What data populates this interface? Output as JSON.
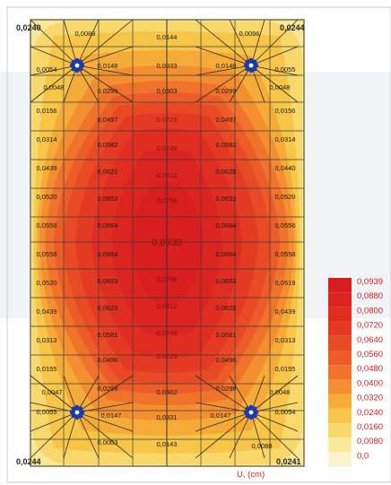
{
  "corner_labels": {
    "top_left": "0,0240",
    "top_right": "0,0244",
    "bottom_left": "0,0244",
    "bottom_right": "0,0241"
  },
  "center_label": "0,0930",
  "unit_label": "U, (cm)",
  "legend": {
    "entries": [
      {
        "label": "0,0939",
        "color": "#d81e1e"
      },
      {
        "label": "0,0880",
        "color": "#dc2520"
      },
      {
        "label": "0,0800",
        "color": "#e02d22"
      },
      {
        "label": "0,0720",
        "color": "#e43a24"
      },
      {
        "label": "0,0640",
        "color": "#e84a26"
      },
      {
        "label": "0,0560",
        "color": "#ec5c28"
      },
      {
        "label": "0,0480",
        "color": "#f0732c"
      },
      {
        "label": "0,0400",
        "color": "#f38f30"
      },
      {
        "label": "0,0320",
        "color": "#f5ab38"
      },
      {
        "label": "0,0240",
        "color": "#f7c548"
      },
      {
        "label": "0,0160",
        "color": "#f8d86a"
      },
      {
        "label": "0,0080",
        "color": "#f9e79a"
      },
      {
        "label": "0,0",
        "color": "#faf3cc"
      }
    ]
  },
  "nodes": [
    {
      "id": "n1",
      "label": "0,0088"
    },
    {
      "id": "n2",
      "label": "0,0144"
    },
    {
      "id": "n3",
      "label": "0,0096"
    },
    {
      "id": "n4",
      "label": "0,0054"
    },
    {
      "id": "n5",
      "label": "0,0148"
    },
    {
      "id": "n6",
      "label": "0,0333"
    },
    {
      "id": "n7",
      "label": "0,0148"
    },
    {
      "id": "n8",
      "label": "0,0055"
    },
    {
      "id": "n9",
      "label": "0,0048"
    },
    {
      "id": "n10",
      "label": "0,0299"
    },
    {
      "id": "n11",
      "label": "0,0503"
    },
    {
      "id": "n12",
      "label": "0,0299"
    },
    {
      "id": "n13",
      "label": "0,0048"
    },
    {
      "id": "n14",
      "label": "0,0156"
    },
    {
      "id": "n15",
      "label": "0,0497"
    },
    {
      "id": "n16",
      "label": "0,0723"
    },
    {
      "id": "n17",
      "label": "0,0497"
    },
    {
      "id": "n18",
      "label": "0,0156"
    },
    {
      "id": "n19",
      "label": "0,0314"
    },
    {
      "id": "n20",
      "label": "0,0582"
    },
    {
      "id": "n21",
      "label": "0,0749"
    },
    {
      "id": "n22",
      "label": "0,0582"
    },
    {
      "id": "n23",
      "label": "0,0314"
    },
    {
      "id": "n24",
      "label": "0,0439"
    },
    {
      "id": "n25",
      "label": "0,0621"
    },
    {
      "id": "n26",
      "label": "0,0812"
    },
    {
      "id": "n27",
      "label": "0,0628"
    },
    {
      "id": "n28",
      "label": "0,0440"
    },
    {
      "id": "n29",
      "label": "0,0520"
    },
    {
      "id": "n30",
      "label": "0,0653"
    },
    {
      "id": "n31",
      "label": "0,0794"
    },
    {
      "id": "n32",
      "label": "0,0653"
    },
    {
      "id": "n33",
      "label": "0,0520"
    },
    {
      "id": "n34",
      "label": "0,0558"
    },
    {
      "id": "n35",
      "label": "0,0664"
    },
    {
      "id": "n36",
      "label": "0,0664"
    },
    {
      "id": "n37",
      "label": "0,0556"
    },
    {
      "id": "n38",
      "label": "0,0558"
    },
    {
      "id": "n39",
      "label": "0,0664"
    },
    {
      "id": "n40",
      "label": "0,0664"
    },
    {
      "id": "n41",
      "label": "0,0558"
    },
    {
      "id": "n42",
      "label": "0,0520"
    },
    {
      "id": "n43",
      "label": "0,0653"
    },
    {
      "id": "n44",
      "label": "0,0794"
    },
    {
      "id": "n45",
      "label": "0,0653"
    },
    {
      "id": "n46",
      "label": "0,0519"
    },
    {
      "id": "n47",
      "label": "0,0439"
    },
    {
      "id": "n48",
      "label": "0,0623"
    },
    {
      "id": "n49",
      "label": "0,0812"
    },
    {
      "id": "n50",
      "label": "0,0628"
    },
    {
      "id": "n51",
      "label": "0,0439"
    },
    {
      "id": "n52",
      "label": "0,0313"
    },
    {
      "id": "n53",
      "label": "0,0581"
    },
    {
      "id": "n54",
      "label": "0,0749"
    },
    {
      "id": "n55",
      "label": "0,0581"
    },
    {
      "id": "n56",
      "label": "0,0313"
    },
    {
      "id": "n57",
      "label": "0,0155"
    },
    {
      "id": "n58",
      "label": "0,0496"
    },
    {
      "id": "n59",
      "label": "0,0723"
    },
    {
      "id": "n60",
      "label": "0,0496"
    },
    {
      "id": "n61",
      "label": "0,0155"
    },
    {
      "id": "n62",
      "label": "0,0047"
    },
    {
      "id": "n63",
      "label": "0,0298"
    },
    {
      "id": "n64",
      "label": "0,0502"
    },
    {
      "id": "n65",
      "label": "0,0298"
    },
    {
      "id": "n66",
      "label": "0,0048"
    },
    {
      "id": "n67",
      "label": "0,0055"
    },
    {
      "id": "n68",
      "label": "0,0147"
    },
    {
      "id": "n69",
      "label": "0,0331"
    },
    {
      "id": "n70",
      "label": "0,0147"
    },
    {
      "id": "n71",
      "label": "0,0054"
    },
    {
      "id": "n72",
      "label": "0,0003"
    },
    {
      "id": "n73",
      "label": "0,0143"
    },
    {
      "id": "n74",
      "label": "0,0088"
    }
  ]
}
